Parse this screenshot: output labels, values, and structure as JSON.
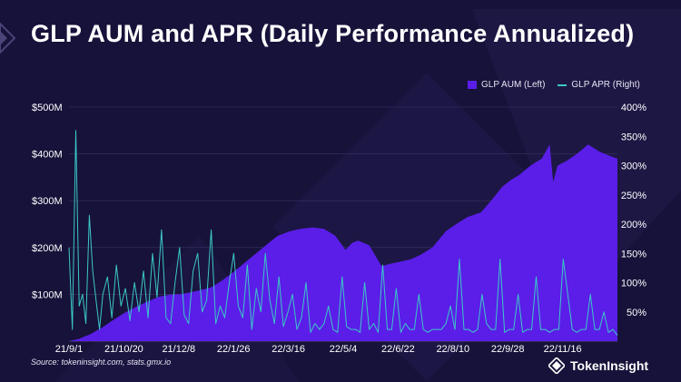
{
  "header": {
    "title": "GLP AUM and APR (Daily Performance Annualized)"
  },
  "legend": {
    "aum_label": "GLP AUM (Left)",
    "apr_label": "GLP APR (Right)"
  },
  "footer": {
    "source": "Source: tokeninsight.com, stats.gmx.io",
    "brand": "TokenInsight"
  },
  "colors": {
    "background": "#17123a",
    "aum": "#5a1ee8",
    "apr": "#3bc9c6"
  },
  "chart_data": {
    "type": "area",
    "title": "GLP AUM and APR (Daily Performance Annualized)",
    "x_tick_labels": [
      "21/9/1",
      "21/10/20",
      "21/12/8",
      "22/1/26",
      "22/3/16",
      "22/5/4",
      "22/6/22",
      "22/8/10",
      "22/9/28",
      "22/11/16"
    ],
    "y_left_tick_labels": [
      "$100M",
      "$200M",
      "$300M",
      "$400M",
      "$500M"
    ],
    "y_left_ticks": [
      100,
      200,
      300,
      400,
      500
    ],
    "y_left_lim": [
      0,
      500
    ],
    "y_left_unit": "$M",
    "y_right_tick_labels": [
      "50%",
      "100%",
      "150%",
      "200%",
      "250%",
      "300%",
      "350%",
      "400%"
    ],
    "y_right_ticks": [
      50,
      100,
      150,
      200,
      250,
      300,
      350,
      400
    ],
    "y_right_lim": [
      0,
      400
    ],
    "y_right_unit": "%",
    "x_range": [
      "2021-09-01",
      "2022-12-31"
    ],
    "grid": true,
    "legend_position": "top-right",
    "series": [
      {
        "name": "GLP AUM (Left)",
        "axis": "left",
        "style": "area",
        "x": [
          "2021-09-01",
          "2021-09-10",
          "2021-09-20",
          "2021-10-01",
          "2021-10-10",
          "2021-10-20",
          "2021-11-01",
          "2021-11-10",
          "2021-11-20",
          "2021-12-01",
          "2021-12-08",
          "2021-12-15",
          "2021-12-25",
          "2022-01-05",
          "2022-01-15",
          "2022-01-26",
          "2022-02-05",
          "2022-02-15",
          "2022-02-25",
          "2022-03-05",
          "2022-03-16",
          "2022-03-25",
          "2022-04-05",
          "2022-04-15",
          "2022-04-25",
          "2022-05-04",
          "2022-05-10",
          "2022-05-15",
          "2022-05-25",
          "2022-06-05",
          "2022-06-12",
          "2022-06-22",
          "2022-07-01",
          "2022-07-10",
          "2022-07-20",
          "2022-08-01",
          "2022-08-10",
          "2022-08-20",
          "2022-09-01",
          "2022-09-10",
          "2022-09-20",
          "2022-09-28",
          "2022-10-05",
          "2022-10-15",
          "2022-10-25",
          "2022-11-01",
          "2022-11-04",
          "2022-11-08",
          "2022-11-16",
          "2022-11-25",
          "2022-12-05",
          "2022-12-15",
          "2022-12-25",
          "2022-12-31"
        ],
        "values": [
          0,
          5,
          15,
          30,
          45,
          60,
          75,
          85,
          95,
          100,
          100,
          103,
          108,
          115,
          130,
          150,
          170,
          190,
          210,
          225,
          235,
          240,
          243,
          240,
          225,
          195,
          210,
          215,
          205,
          160,
          165,
          170,
          175,
          185,
          200,
          235,
          250,
          265,
          275,
          300,
          330,
          345,
          355,
          375,
          390,
          420,
          340,
          375,
          385,
          400,
          420,
          405,
          395,
          390
        ]
      },
      {
        "name": "GLP APR (Right)",
        "axis": "right",
        "style": "line",
        "x": [
          "2021-09-01",
          "2021-09-04",
          "2021-09-07",
          "2021-09-10",
          "2021-09-13",
          "2021-09-16",
          "2021-09-19",
          "2021-09-22",
          "2021-09-25",
          "2021-09-28",
          "2021-10-01",
          "2021-10-05",
          "2021-10-09",
          "2021-10-13",
          "2021-10-17",
          "2021-10-21",
          "2021-10-25",
          "2021-10-29",
          "2021-11-02",
          "2021-11-06",
          "2021-11-10",
          "2021-11-14",
          "2021-11-18",
          "2021-11-22",
          "2021-11-26",
          "2021-11-30",
          "2021-12-04",
          "2021-12-08",
          "2021-12-12",
          "2021-12-16",
          "2021-12-20",
          "2021-12-24",
          "2021-12-28",
          "2022-01-01",
          "2022-01-05",
          "2022-01-09",
          "2022-01-13",
          "2022-01-17",
          "2022-01-21",
          "2022-01-25",
          "2022-01-29",
          "2022-02-02",
          "2022-02-06",
          "2022-02-10",
          "2022-02-14",
          "2022-02-18",
          "2022-02-22",
          "2022-02-26",
          "2022-03-02",
          "2022-03-06",
          "2022-03-10",
          "2022-03-14",
          "2022-03-18",
          "2022-03-22",
          "2022-03-26",
          "2022-03-30",
          "2022-04-03",
          "2022-04-07",
          "2022-04-11",
          "2022-04-15",
          "2022-04-19",
          "2022-04-23",
          "2022-04-27",
          "2022-05-01",
          "2022-05-05",
          "2022-05-09",
          "2022-05-13",
          "2022-05-17",
          "2022-05-21",
          "2022-05-25",
          "2022-05-29",
          "2022-06-02",
          "2022-06-06",
          "2022-06-10",
          "2022-06-14",
          "2022-06-18",
          "2022-06-22",
          "2022-06-26",
          "2022-06-30",
          "2022-07-04",
          "2022-07-08",
          "2022-07-12",
          "2022-07-16",
          "2022-07-20",
          "2022-07-24",
          "2022-07-28",
          "2022-08-01",
          "2022-08-05",
          "2022-08-09",
          "2022-08-13",
          "2022-08-17",
          "2022-08-21",
          "2022-08-25",
          "2022-08-29",
          "2022-09-02",
          "2022-09-06",
          "2022-09-10",
          "2022-09-14",
          "2022-09-18",
          "2022-09-22",
          "2022-09-26",
          "2022-09-30",
          "2022-10-04",
          "2022-10-08",
          "2022-10-12",
          "2022-10-16",
          "2022-10-20",
          "2022-10-24",
          "2022-10-28",
          "2022-11-01",
          "2022-11-05",
          "2022-11-09",
          "2022-11-13",
          "2022-11-17",
          "2022-11-21",
          "2022-11-25",
          "2022-11-29",
          "2022-12-03",
          "2022-12-07",
          "2022-12-11",
          "2022-12-15",
          "2022-12-19",
          "2022-12-23",
          "2022-12-27",
          "2022-12-31"
        ],
        "values": [
          160,
          20,
          360,
          60,
          80,
          30,
          215,
          120,
          70,
          20,
          80,
          110,
          40,
          130,
          60,
          90,
          35,
          100,
          50,
          120,
          40,
          150,
          75,
          190,
          40,
          30,
          100,
          160,
          45,
          30,
          120,
          150,
          50,
          70,
          190,
          30,
          60,
          40,
          100,
          150,
          60,
          40,
          130,
          20,
          90,
          50,
          150,
          70,
          30,
          110,
          25,
          50,
          80,
          20,
          40,
          100,
          15,
          30,
          20,
          30,
          60,
          20,
          15,
          110,
          25,
          20,
          20,
          15,
          100,
          20,
          30,
          15,
          130,
          20,
          20,
          90,
          15,
          30,
          20,
          20,
          80,
          20,
          15,
          20,
          20,
          20,
          30,
          60,
          20,
          140,
          20,
          20,
          15,
          20,
          80,
          30,
          20,
          20,
          140,
          15,
          20,
          20,
          80,
          15,
          20,
          20,
          110,
          20,
          20,
          15,
          20,
          20,
          140,
          80,
          20,
          15,
          20,
          20,
          80,
          20,
          20,
          50,
          15,
          20,
          10
        ]
      }
    ]
  }
}
